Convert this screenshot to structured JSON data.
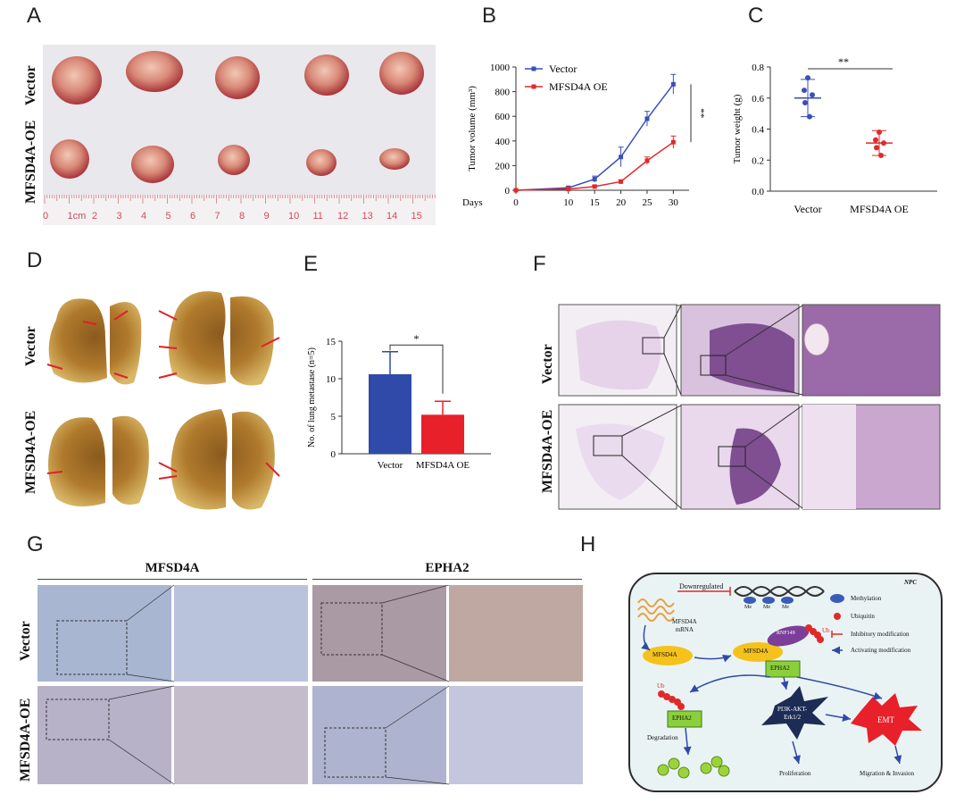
{
  "panels": {
    "A": "A",
    "B": "B",
    "C": "C",
    "D": "D",
    "E": "E",
    "F": "F",
    "G": "G",
    "H": "H"
  },
  "panel_a": {
    "row_labels": [
      "Vector",
      "MFSD4A-OE"
    ],
    "ruler_numbers": [
      "0",
      "1",
      "2",
      "3",
      "4",
      "5",
      "6",
      "7",
      "8",
      "9",
      "10",
      "11",
      "12",
      "13",
      "14",
      "15"
    ],
    "ruler_unit": "cm"
  },
  "panel_d": {
    "row_labels": [
      "Vector",
      "MFSD4A-OE"
    ]
  },
  "panel_f": {
    "row_labels": [
      "Vector",
      "MFSD4A-OE"
    ]
  },
  "panel_g": {
    "col_labels": [
      "MFSD4A",
      "EPHA2"
    ],
    "row_labels": [
      "Vector",
      "MFSD4A-OE"
    ]
  },
  "panel_h": {
    "corner": "NPC",
    "downregulated": "Downregulated",
    "mrna_line1": "MFSD4A",
    "mrna_line2": "mRNA",
    "me": "Me",
    "mfsd4a": "MFSD4A",
    "rnf149": "RNF149",
    "ub": "Ub",
    "epha2": "EPHA2",
    "pi3k_line1": "PI3K-AKT-",
    "pi3k_line2": "Erk1/2",
    "emt": "EMT",
    "degradation": "Degradation",
    "proliferation": "Proliferation",
    "migration": "Migration & Invasion",
    "legend": [
      "Methylation",
      "Ubiquitin",
      "Inhibitory modification",
      "Activating modification"
    ]
  },
  "chart_data": [
    {
      "panel": "B",
      "type": "line",
      "xlabel": "Days",
      "ylabel": "Tumor volume (mm³)",
      "x": [
        0,
        10,
        15,
        20,
        25,
        30
      ],
      "ylim": [
        0,
        1000
      ],
      "yticks": [
        0,
        200,
        400,
        600,
        800,
        1000
      ],
      "series": [
        {
          "name": "Vector",
          "color": "#3b4fb8",
          "values": [
            0,
            20,
            90,
            270,
            580,
            860
          ],
          "errors": [
            0,
            8,
            25,
            80,
            60,
            80
          ]
        },
        {
          "name": "MFSD4A OE",
          "color": "#e02a2a",
          "values": [
            0,
            10,
            30,
            70,
            240,
            390
          ],
          "errors": [
            0,
            5,
            10,
            15,
            30,
            50
          ]
        }
      ],
      "annotation": "**",
      "legend_position": "top-left"
    },
    {
      "panel": "C",
      "type": "scatter",
      "ylabel": "Tumor weight (g)",
      "categories": [
        "Vector",
        "MFSD4A OE"
      ],
      "ylim": [
        0,
        0.8
      ],
      "yticks": [
        0.0,
        0.2,
        0.4,
        0.6,
        0.8
      ],
      "series": [
        {
          "name": "Vector",
          "color": "#3b4fb8",
          "points": [
            0.73,
            0.65,
            0.62,
            0.57,
            0.48
          ],
          "mean": 0.6,
          "sd": 0.12
        },
        {
          "name": "MFSD4A OE",
          "color": "#e02a2a",
          "points": [
            0.38,
            0.33,
            0.31,
            0.28,
            0.23
          ],
          "mean": 0.31,
          "sd": 0.08
        }
      ],
      "annotation": "**"
    },
    {
      "panel": "E",
      "type": "bar",
      "ylabel": "No. of lung metastase (n=5)",
      "categories": [
        "Vector",
        "MFSD4A OE"
      ],
      "ylim": [
        0,
        15
      ],
      "yticks": [
        0,
        5,
        10,
        15
      ],
      "values": [
        10.6,
        5.2
      ],
      "errors": [
        3.0,
        1.8
      ],
      "colors": [
        "#2f4aa8",
        "#e8202a"
      ],
      "annotation": "*"
    }
  ]
}
